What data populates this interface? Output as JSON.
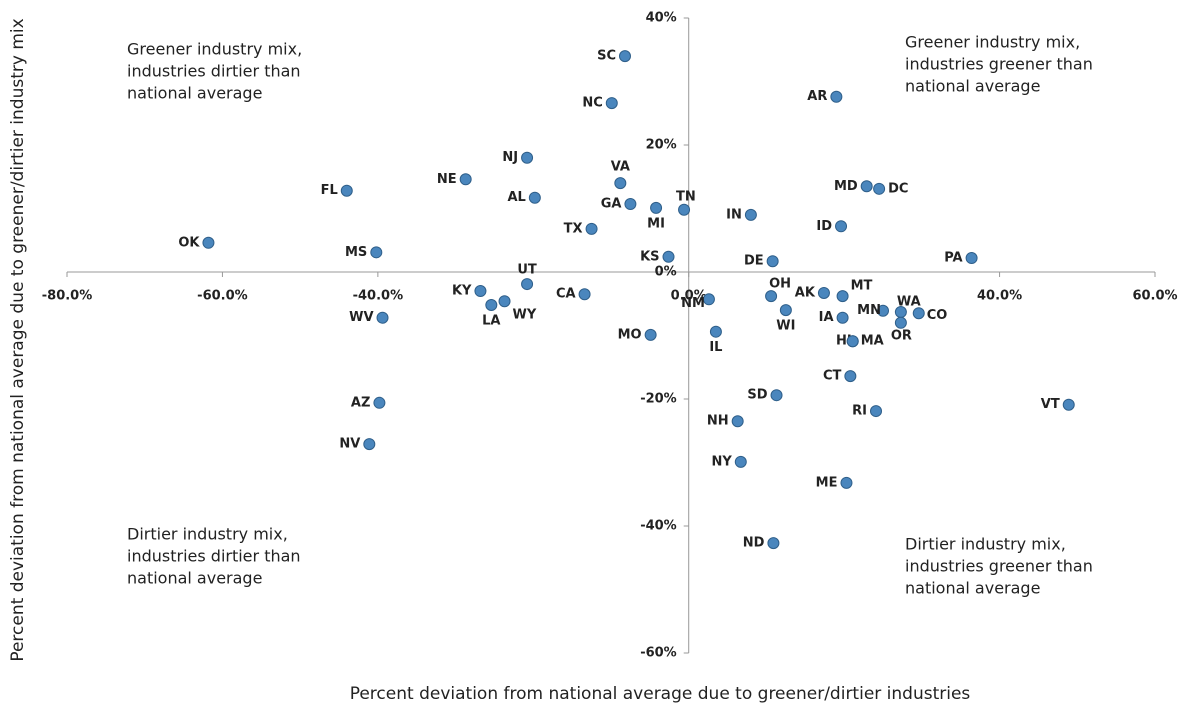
{
  "chart_data": {
    "type": "scatter",
    "xlabel": "Percent deviation from national average due to greener/dirtier industries",
    "ylabel": "Percent deviation from national average due to greener/dirtier industry mix",
    "annotations": [
      [
        "Greener industry mix,",
        "industries dirtier than",
        "national average"
      ],
      [
        "Greener industry mix,",
        "industries greener than",
        "national average"
      ],
      [
        "Dirtier industry mix,",
        "industries dirtier than",
        "national average"
      ],
      [
        "Dirtier industry mix,",
        "industries greener than",
        "national average"
      ]
    ],
    "xlim": [
      -80,
      60
    ],
    "ylim": [
      -60,
      40
    ],
    "xticks": [
      {
        "value": -80,
        "label": "-80.0%"
      },
      {
        "value": -60,
        "label": "-60.0%"
      },
      {
        "value": -40,
        "label": "-40.0%"
      },
      {
        "value": 0,
        "label": "0.0%"
      },
      {
        "value": 40,
        "label": "40.0%"
      },
      {
        "value": 60,
        "label": "60.0%"
      }
    ],
    "yticks": [
      {
        "value": 40,
        "label": "40%"
      },
      {
        "value": 20,
        "label": "20%"
      },
      {
        "value": 0,
        "label": "0%"
      },
      {
        "value": -20,
        "label": "-20%"
      },
      {
        "value": -40,
        "label": "-40%"
      },
      {
        "value": -60,
        "label": "-60%"
      }
    ],
    "color": "#4a86bd",
    "point_labels": [
      "SC",
      "NC",
      "AR",
      "NJ",
      "VA",
      "NE",
      "FL",
      "AL",
      "GA",
      "MI",
      "TN",
      "MD",
      "DC",
      "IN",
      "ID",
      "TX",
      "OK",
      "MS",
      "KS",
      "DE",
      "PA",
      "UT",
      "KY",
      "CA",
      "LA",
      "WY",
      "WV",
      "NM",
      "OH",
      "AK",
      "MT",
      "WI",
      "MN",
      "WA",
      "CO",
      "IA",
      "OR",
      "MO",
      "IL",
      "HI",
      "MA",
      "CT",
      "SD",
      "RI",
      "VT",
      "AZ",
      "NV",
      "NH",
      "NY",
      "ME",
      "ND"
    ],
    "x": [
      -8.2,
      -9.9,
      19.0,
      -20.8,
      -8.8,
      -28.7,
      -44.0,
      -19.8,
      -7.5,
      -4.2,
      -0.6,
      22.9,
      24.5,
      8.0,
      19.6,
      -12.5,
      -61.8,
      -40.2,
      -2.6,
      10.8,
      36.4,
      -20.8,
      -26.8,
      -13.4,
      -25.4,
      -23.7,
      -39.4,
      2.6,
      10.6,
      17.4,
      19.8,
      12.5,
      25.0,
      27.3,
      29.6,
      19.8,
      27.3,
      -4.9,
      3.5,
      21.1,
      21.1,
      20.8,
      11.3,
      24.1,
      48.9,
      -39.8,
      -41.1,
      6.3,
      6.7,
      20.3,
      10.9
    ],
    "values": [
      34.0,
      26.6,
      27.6,
      18.0,
      14.0,
      14.6,
      12.8,
      11.7,
      10.7,
      10.1,
      9.8,
      13.5,
      13.1,
      9.0,
      7.2,
      6.8,
      4.6,
      3.1,
      2.4,
      1.7,
      2.2,
      -1.9,
      -3.0,
      -3.5,
      -5.2,
      -4.6,
      -7.2,
      -4.3,
      -3.8,
      -3.3,
      -3.8,
      -6.0,
      -6.1,
      -6.3,
      -6.5,
      -7.2,
      -8.0,
      -9.9,
      -9.4,
      -10.9,
      -10.9,
      -16.4,
      -19.4,
      -21.9,
      -20.9,
      -20.6,
      -27.1,
      -23.5,
      -29.9,
      -33.2,
      -42.7
    ]
  }
}
